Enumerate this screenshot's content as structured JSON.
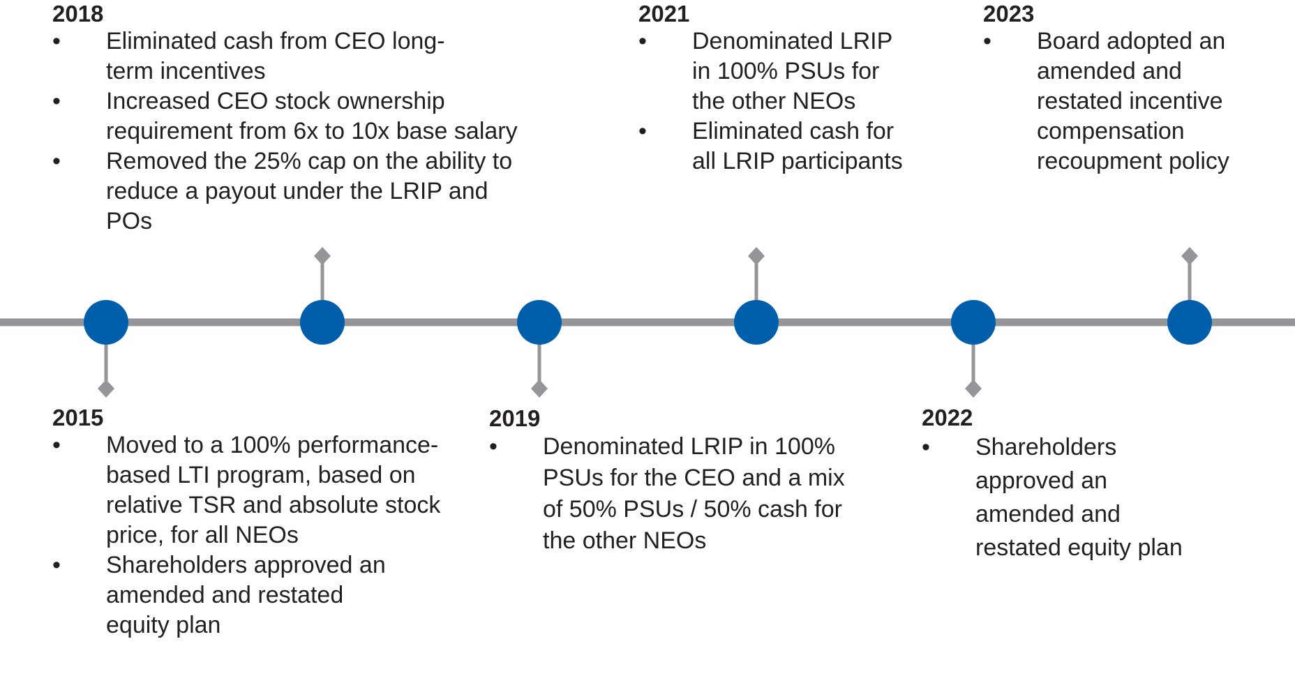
{
  "colors": {
    "axis": "#939598",
    "node": "#005eab",
    "text": "#231f20"
  },
  "events": [
    {
      "year": "2015",
      "bullets": [
        "Moved to a 100% performance-based LTI program, based on relative TSR and absolute stock price, for all NEOs",
        "Shareholders approved an amended and restated equity plan"
      ]
    },
    {
      "year": "2018",
      "bullets": [
        "Eliminated cash from CEO long-term incentives",
        "Increased CEO stock ownership requirement from 6x to 10x base salary",
        "Removed the 25% cap on the ability to reduce a payout under the LRIP and POs"
      ]
    },
    {
      "year": "2019",
      "bullets": [
        "Denominated LRIP in 100% PSUs for the CEO and a mix of 50% PSUs / 50% cash for the other NEOs"
      ]
    },
    {
      "year": "2021",
      "bullets": [
        "Denominated LRIP in 100% PSUs for the other NEOs",
        "Eliminated cash for all LRIP participants"
      ]
    },
    {
      "year": "2022",
      "bullets": [
        "Shareholders approved an amended and restated equity plan"
      ]
    },
    {
      "year": "2023",
      "bullets": [
        "Board adopted an amended and restated incentive compensation recoupment policy"
      ]
    }
  ]
}
